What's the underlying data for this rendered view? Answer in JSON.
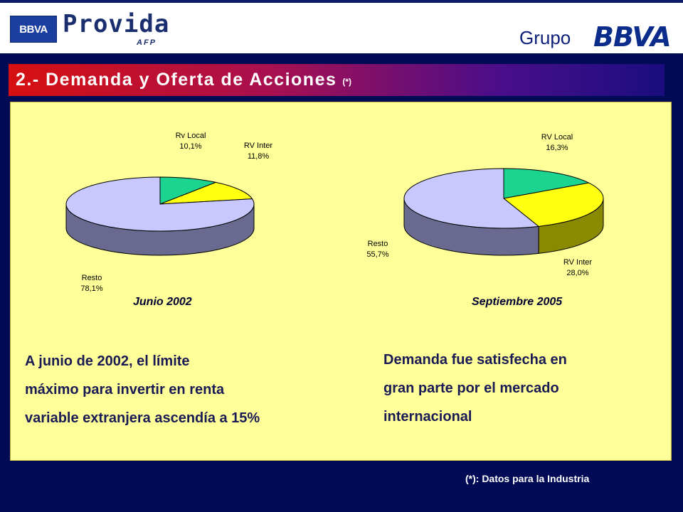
{
  "header": {
    "logo_bbva": "BBVA",
    "logo_provida": "Provida",
    "logo_afp": "AFP",
    "grupo": "Grupo",
    "grupo_bbva": "BBVA"
  },
  "title": {
    "text": "2.- Demanda y Oferta de Acciones",
    "mark": "(*)"
  },
  "colors": {
    "rv_local": "#1ad490",
    "rv_inter": "#ffff10",
    "resto": "#c8c8ff"
  },
  "chart_data": [
    {
      "type": "pie",
      "title": "Junio 2002",
      "categories": [
        "Rv Local",
        "RV Inter",
        "Resto"
      ],
      "values": [
        10.1,
        11.8,
        78.1
      ],
      "value_labels": [
        "10,1%",
        "11,8%",
        "78,1%"
      ]
    },
    {
      "type": "pie",
      "title": "Septiembre 2005",
      "categories": [
        "RV Local",
        "RV Inter",
        "Resto"
      ],
      "values": [
        16.3,
        28.0,
        55.7
      ],
      "value_labels": [
        "16,3%",
        "28,0%",
        "55,7%"
      ]
    }
  ],
  "text": {
    "left_lines": [
      "A junio de 2002, el límite",
      "máximo para invertir en renta",
      "variable extranjera ascendía a 15%"
    ],
    "right_lines": [
      "Demanda fue satisfecha en",
      "gran parte por el mercado",
      "internacional"
    ]
  },
  "footnote": "(*): Datos para la Industria"
}
